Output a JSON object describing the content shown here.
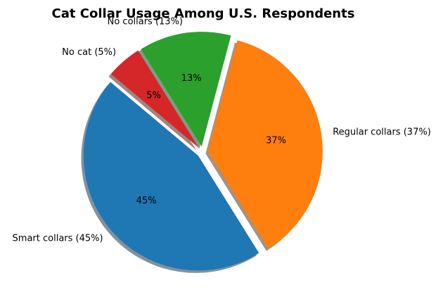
{
  "chart_data": {
    "type": "pie",
    "title": "Cat Collar Usage Among U.S. Respondents",
    "slices": [
      {
        "label": "Smart collars",
        "outer_label": "Smart collars (45%)",
        "pct_label": "45%",
        "value": 45,
        "color": "#1f77b4"
      },
      {
        "label": "Regular collars",
        "outer_label": "Regular collars (37%)",
        "pct_label": "37%",
        "value": 37,
        "color": "#ff7f0e"
      },
      {
        "label": "No collars",
        "outer_label": "No collars (13%)",
        "pct_label": "13%",
        "value": 13,
        "color": "#2ca02c"
      },
      {
        "label": "No cat",
        "outer_label": "No cat (5%)",
        "pct_label": "5%",
        "value": 5,
        "color": "#d62728"
      }
    ],
    "layout": {
      "start_angle": 140,
      "counterclock": true,
      "explode": 0.05,
      "shadow": true,
      "label_distance": 1.1,
      "pct_distance": 0.6,
      "background": "#ffffff",
      "text_color": "#000000"
    }
  }
}
